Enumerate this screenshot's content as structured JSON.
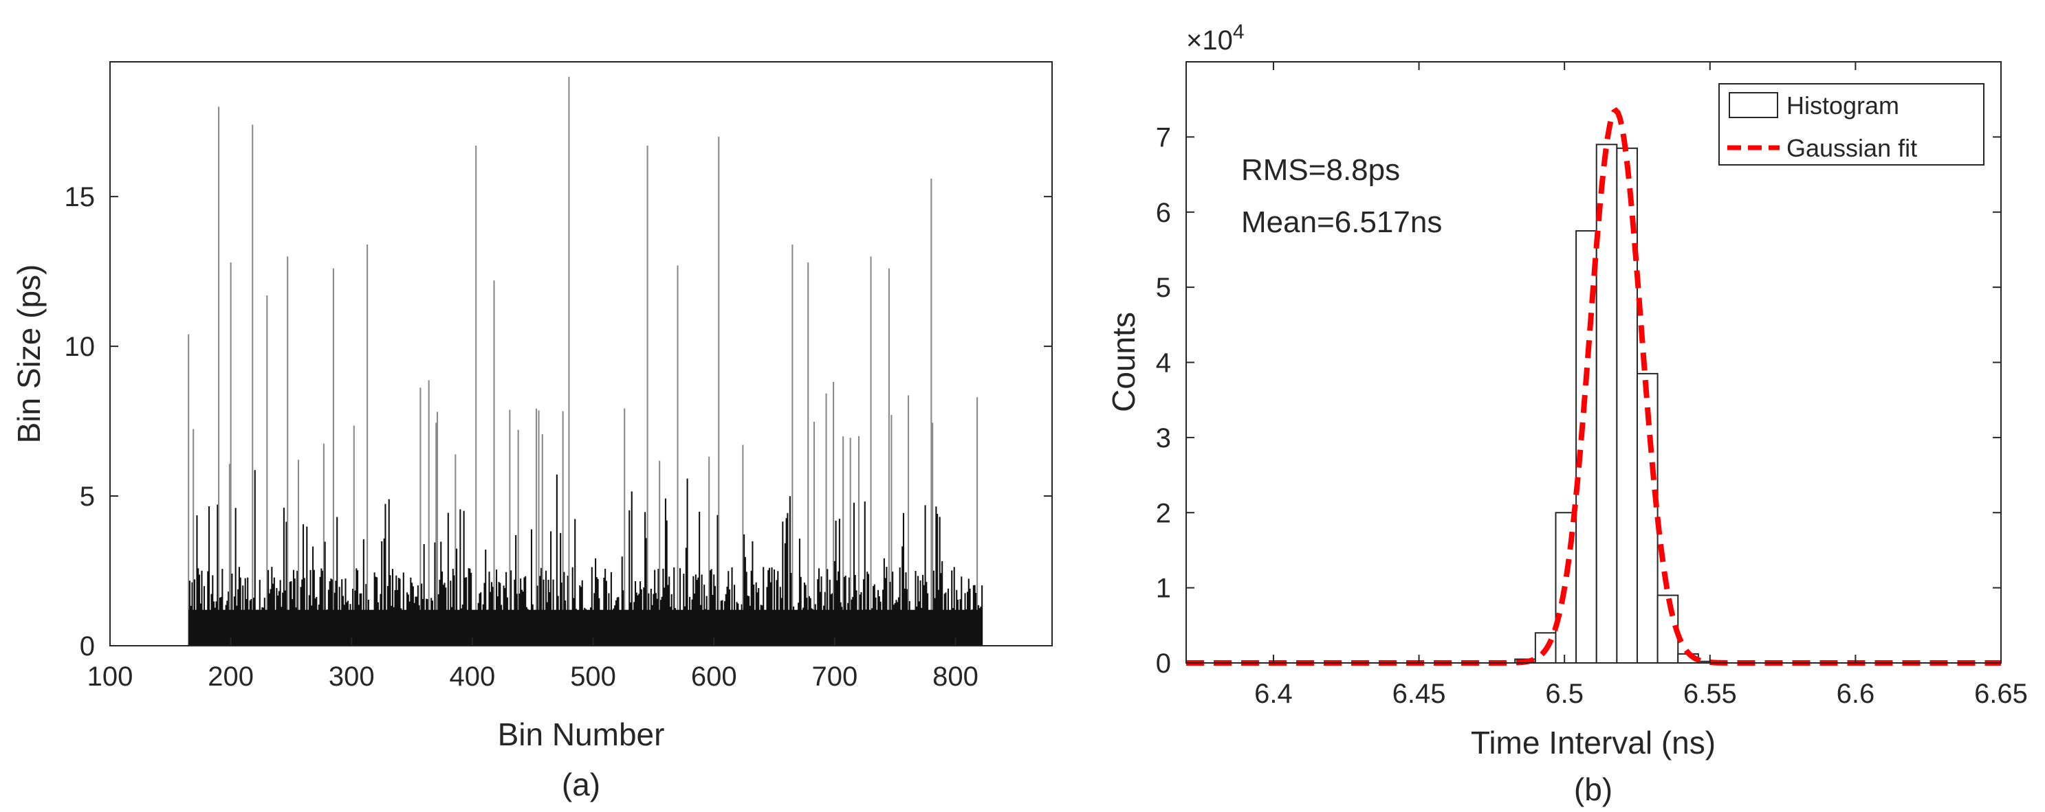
{
  "chart_data": [
    {
      "type": "bar",
      "caption": "(a)",
      "xlabel": "Bin Number",
      "ylabel": "Bin Size (ps)",
      "xlim": [
        100,
        880
      ],
      "ylim": [
        0,
        19.5
      ],
      "xticks": [
        100,
        200,
        300,
        400,
        500,
        600,
        700,
        800
      ],
      "yticks": [
        0,
        5,
        10,
        15
      ],
      "bins_range": [
        165,
        822
      ],
      "spikes": [
        {
          "x": 165,
          "y": 10.4
        },
        {
          "x": 190,
          "y": 18.0
        },
        {
          "x": 200,
          "y": 12.8
        },
        {
          "x": 218,
          "y": 17.4
        },
        {
          "x": 230,
          "y": 11.7
        },
        {
          "x": 247,
          "y": 13.0
        },
        {
          "x": 285,
          "y": 12.6
        },
        {
          "x": 313,
          "y": 13.4
        },
        {
          "x": 403,
          "y": 16.7
        },
        {
          "x": 418,
          "y": 12.2
        },
        {
          "x": 480,
          "y": 19.0
        },
        {
          "x": 545,
          "y": 16.7
        },
        {
          "x": 570,
          "y": 12.7
        },
        {
          "x": 604,
          "y": 17.0
        },
        {
          "x": 665,
          "y": 13.4
        },
        {
          "x": 678,
          "y": 12.8
        },
        {
          "x": 730,
          "y": 13.0
        },
        {
          "x": 745,
          "y": 12.6
        },
        {
          "x": 780,
          "y": 15.6
        },
        {
          "x": 818,
          "y": 8.3
        }
      ]
    },
    {
      "type": "bar",
      "caption": "(b)",
      "xlabel": "Time Interval (ns)",
      "ylabel": "Counts",
      "y_multiplier": "×10",
      "y_multiplier_exp": "4",
      "xlim": [
        6.37,
        6.65
      ],
      "ylim": [
        0,
        8
      ],
      "xticks": [
        "6.4",
        "6.45",
        "6.5",
        "6.55",
        "6.6",
        "6.65"
      ],
      "yticks": [
        "0",
        "1",
        "2",
        "3",
        "4",
        "5",
        "6",
        "7"
      ],
      "bin_width": 0.007,
      "series": [
        {
          "name": "Histogram",
          "type": "bar",
          "x": [
            6.4865,
            6.4935,
            6.5005,
            6.5075,
            6.5145,
            6.5215,
            6.5285,
            6.5355,
            6.5425,
            6.5495
          ],
          "values": [
            0.05,
            0.4,
            2.0,
            5.75,
            6.9,
            6.85,
            3.85,
            0.9,
            0.12,
            0.02
          ]
        },
        {
          "name": "Gaussian fit",
          "type": "line",
          "mean": 6.5176,
          "sigma": 0.0088,
          "amplitude": 7.35,
          "color": "#ff0000",
          "style": "dashed"
        }
      ],
      "annotations": [
        "RMS=8.8ps",
        "Mean=6.517ns"
      ],
      "legend_position": "top-right",
      "grid": false
    }
  ]
}
